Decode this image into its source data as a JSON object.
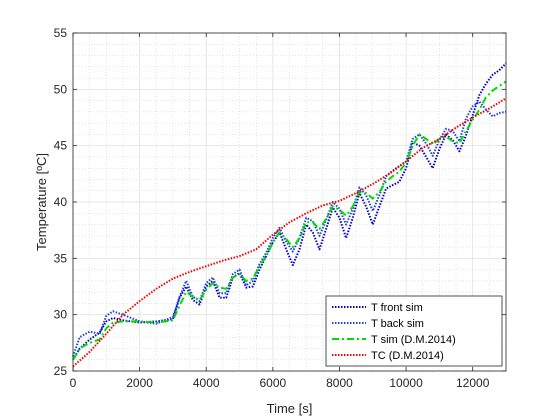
{
  "chart_data": {
    "type": "line",
    "xlabel": "Time [s]",
    "ylabel": "Temperature [ºC]",
    "xlim": [
      0,
      13000
    ],
    "ylim": [
      25,
      55
    ],
    "xticks": [
      0,
      2000,
      4000,
      6000,
      8000,
      10000,
      12000
    ],
    "yticks": [
      25,
      30,
      35,
      40,
      45,
      50,
      55
    ],
    "grid": true,
    "minor_grid": true,
    "legend_position": "bottom-right",
    "series": [
      {
        "name": "T front sim",
        "color": "#0000cc",
        "style": "dotted",
        "x": [
          0,
          200,
          500,
          800,
          1000,
          1200,
          1500,
          2000,
          2500,
          3000,
          3200,
          3400,
          3600,
          3800,
          4000,
          4200,
          4400,
          4600,
          4800,
          5000,
          5200,
          5400,
          5600,
          5800,
          6000,
          6200,
          6400,
          6600,
          6800,
          7000,
          7200,
          7400,
          7600,
          7800,
          8000,
          8200,
          8400,
          8600,
          8800,
          9000,
          9200,
          9400,
          9600,
          9800,
          10000,
          10200,
          10400,
          10600,
          10800,
          11000,
          11200,
          11400,
          11600,
          11800,
          12000,
          12200,
          12400,
          12600,
          12800,
          13000
        ],
        "y": [
          26.0,
          27.0,
          27.8,
          28.4,
          29.4,
          29.7,
          29.5,
          29.3,
          29.4,
          29.6,
          31.5,
          32.5,
          31.3,
          30.9,
          32.5,
          33.0,
          31.5,
          31.5,
          33.3,
          33.7,
          32.4,
          32.5,
          34.0,
          35.2,
          36.4,
          37.3,
          35.8,
          34.4,
          35.8,
          38.0,
          37.3,
          35.8,
          37.6,
          39.5,
          38.6,
          36.8,
          38.6,
          40.8,
          39.6,
          38.0,
          39.6,
          41.2,
          41.5,
          41.8,
          43.0,
          45.3,
          45.0,
          44.0,
          43.0,
          44.7,
          46.0,
          45.5,
          44.5,
          45.9,
          47.7,
          49.5,
          50.5,
          51.3,
          51.7,
          52.3
        ]
      },
      {
        "name": "T back sim",
        "color": "#2040dd",
        "style": "dotted",
        "x": [
          0,
          200,
          500,
          800,
          1000,
          1200,
          1500,
          2000,
          2500,
          3000,
          3200,
          3400,
          3600,
          3800,
          4000,
          4200,
          4400,
          4600,
          4800,
          5000,
          5200,
          5400,
          5600,
          5800,
          6000,
          6200,
          6400,
          6600,
          6800,
          7000,
          7200,
          7400,
          7600,
          7800,
          8000,
          8200,
          8400,
          8600,
          8800,
          9000,
          9200,
          9400,
          9600,
          9800,
          10000,
          10200,
          10400,
          10600,
          10800,
          11000,
          11200,
          11400,
          11600,
          11800,
          12000,
          12200,
          12400,
          12600,
          12800,
          13000
        ],
        "y": [
          26.3,
          28.0,
          28.5,
          28.3,
          29.9,
          30.3,
          30.0,
          29.4,
          29.2,
          29.8,
          31.6,
          33.0,
          31.6,
          31.2,
          32.8,
          33.3,
          31.9,
          31.9,
          33.6,
          34.0,
          32.6,
          33.0,
          34.5,
          35.5,
          36.8,
          37.7,
          36.5,
          35.6,
          36.8,
          38.6,
          38.3,
          37.0,
          38.4,
          40.0,
          39.4,
          38.0,
          39.4,
          41.3,
          40.6,
          39.2,
          40.6,
          42.3,
          42.8,
          43.2,
          43.6,
          45.6,
          46.0,
          45.2,
          44.1,
          45.5,
          46.5,
          46.3,
          45.4,
          47.4,
          48.5,
          48.9,
          48.2,
          47.6,
          47.9,
          48.0
        ]
      },
      {
        "name": "T sim (D.M.2014)",
        "color": "#00dd00",
        "style": "dashdot",
        "x": [
          0,
          200,
          500,
          800,
          1000,
          1200,
          1500,
          2000,
          2500,
          3000,
          3200,
          3400,
          3600,
          3800,
          4000,
          4200,
          4400,
          4600,
          4800,
          5000,
          5200,
          5400,
          5600,
          5800,
          6000,
          6200,
          6400,
          6600,
          6800,
          7000,
          7200,
          7400,
          7600,
          7800,
          8000,
          8200,
          8400,
          8600,
          8800,
          9000,
          9200,
          9400,
          9600,
          9800,
          10000,
          10200,
          10400,
          10600,
          10800,
          11000,
          11200,
          11400,
          11600,
          11800,
          12000,
          12200,
          12400,
          12600,
          12800,
          13000
        ],
        "y": [
          26.0,
          27.0,
          27.5,
          27.8,
          28.8,
          29.3,
          29.4,
          29.4,
          29.3,
          29.5,
          30.8,
          32.0,
          31.6,
          31.3,
          32.2,
          32.8,
          32.4,
          32.3,
          33.3,
          33.6,
          33.0,
          33.2,
          34.3,
          35.2,
          36.4,
          37.3,
          36.7,
          36.0,
          36.8,
          38.2,
          38.2,
          37.6,
          38.5,
          39.6,
          39.3,
          38.8,
          39.6,
          40.9,
          40.8,
          40.3,
          40.9,
          41.8,
          42.3,
          42.7,
          43.5,
          45.0,
          46.0,
          45.6,
          45.1,
          45.6,
          45.8,
          45.4,
          45.2,
          46.3,
          47.3,
          48.2,
          49.3,
          49.9,
          50.3,
          50.7
        ]
      },
      {
        "name": "TC (D.M.2014)",
        "color": "#ee0000",
        "style": "dotted",
        "x": [
          0,
          500,
          1000,
          1500,
          2000,
          2500,
          3000,
          3500,
          4000,
          4500,
          5000,
          5500,
          6000,
          6500,
          7000,
          7500,
          8000,
          8500,
          9000,
          9500,
          10000,
          10500,
          11000,
          11500,
          12000,
          12500,
          13000
        ],
        "y": [
          25.4,
          26.7,
          28.3,
          30.0,
          31.2,
          32.3,
          33.2,
          33.8,
          34.3,
          34.8,
          35.2,
          35.8,
          37.1,
          38.2,
          39.0,
          39.7,
          40.1,
          40.8,
          41.6,
          42.5,
          43.6,
          44.8,
          45.6,
          46.6,
          47.5,
          48.3,
          49.2
        ]
      }
    ]
  }
}
